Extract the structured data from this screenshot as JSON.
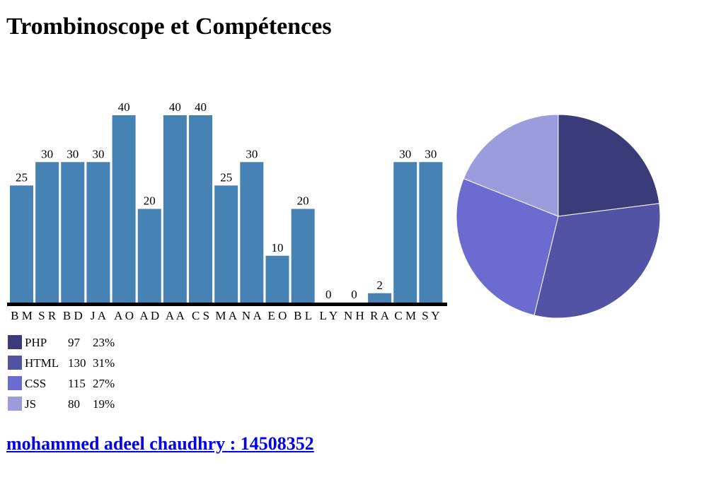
{
  "header": {
    "title": "Trombinoscope et Compétences"
  },
  "chart_data": [
    {
      "type": "bar",
      "color": "#4682b4",
      "categories": [
        "B M",
        "S R",
        "B D",
        "J A",
        "A O",
        "A D",
        "A A",
        "C S",
        "M A",
        "N A",
        "E O",
        "B L",
        "L Y",
        "N H",
        "R A",
        "C M",
        "S Y"
      ],
      "values": [
        25,
        30,
        30,
        30,
        40,
        20,
        40,
        40,
        25,
        30,
        10,
        20,
        0,
        0,
        2,
        30,
        30
      ]
    },
    {
      "type": "pie",
      "categories": [
        "PHP",
        "HTML",
        "CSS",
        "JS"
      ],
      "values": [
        97,
        130,
        115,
        80
      ],
      "shares": [
        "23%",
        "31%",
        "27%",
        "19%"
      ],
      "colors": [
        "#3b3b7a",
        "#5353a5",
        "#6b6bd0",
        "#9c9cdd"
      ]
    }
  ],
  "footer": {
    "link": "mohammed adeel chaudhry : 14508352"
  }
}
